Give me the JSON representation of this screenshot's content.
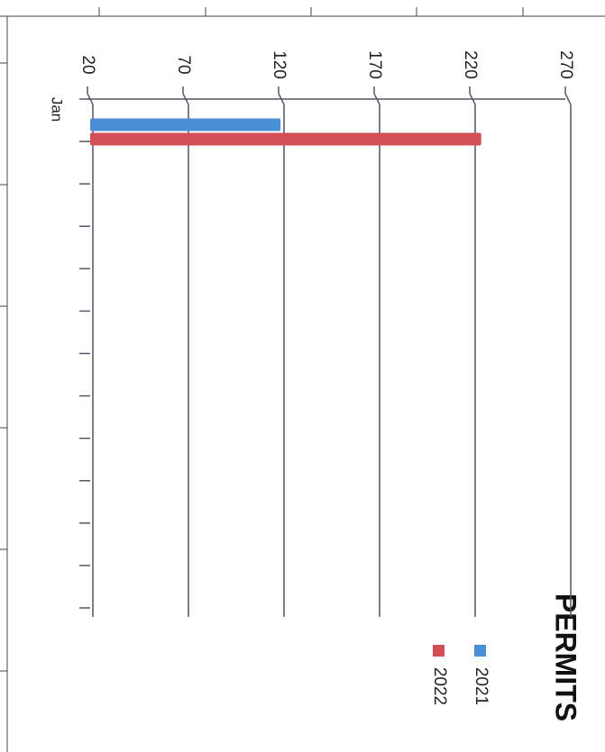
{
  "chart_data": {
    "type": "bar",
    "title": "PERMITS",
    "categories": [
      "Jan",
      null,
      null,
      null,
      null,
      null,
      null,
      null,
      null,
      null,
      null,
      null
    ],
    "series": [
      {
        "name": "2021",
        "color": "#4a8fd6",
        "values": [
          121,
          null,
          null,
          null,
          null,
          null,
          null,
          null,
          null,
          null,
          null,
          null
        ]
      },
      {
        "name": "2022",
        "color": "#d24f55",
        "values": [
          226,
          null,
          null,
          null,
          null,
          null,
          null,
          null,
          null,
          null,
          null,
          null
        ]
      }
    ],
    "ylim": [
      20,
      270
    ],
    "yticks": [
      20,
      70,
      120,
      170,
      220,
      270
    ],
    "grid": true
  }
}
